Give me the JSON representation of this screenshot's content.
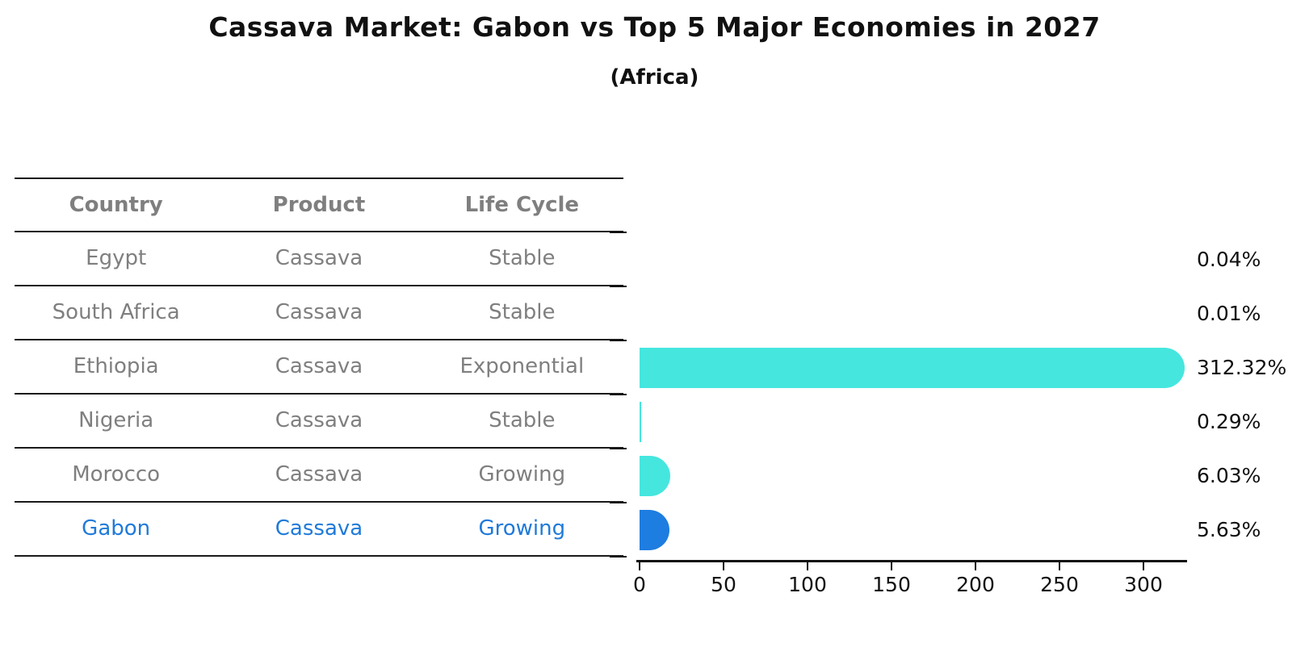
{
  "title": "Cassava Market: Gabon vs Top 5 Major Economies in 2027",
  "subtitle": "(Africa)",
  "table": {
    "columns": [
      "Country",
      "Product",
      "Life Cycle"
    ],
    "rows": [
      {
        "country": "Egypt",
        "product": "Cassava",
        "life_cycle": "Stable",
        "highlight": false
      },
      {
        "country": "South Africa",
        "product": "Cassava",
        "life_cycle": "Stable",
        "highlight": false
      },
      {
        "country": "Ethiopia",
        "product": "Cassava",
        "life_cycle": "Exponential",
        "highlight": false
      },
      {
        "country": "Nigeria",
        "product": "Cassava",
        "life_cycle": "Stable",
        "highlight": false
      },
      {
        "country": "Morocco",
        "product": "Cassava",
        "life_cycle": "Growing",
        "highlight": false
      },
      {
        "country": "Gabon",
        "product": "Cassava",
        "life_cycle": "Growing",
        "highlight": true
      }
    ]
  },
  "chart_data": {
    "type": "bar",
    "orientation": "horizontal",
    "title": "Cassava Market: Gabon vs Top 5 Major Economies in 2027 (Africa)",
    "categories": [
      "Egypt",
      "South Africa",
      "Ethiopia",
      "Nigeria",
      "Morocco",
      "Gabon"
    ],
    "values": [
      0.04,
      0.01,
      312.32,
      0.29,
      6.03,
      5.63
    ],
    "value_labels": [
      "0.04%",
      "0.01%",
      "312.32%",
      "0.29%",
      "6.03%",
      "5.63%"
    ],
    "bar_colors": [
      "#45E6DE",
      "#45E6DE",
      "#45E6DE",
      "#45E6DE",
      "#45E6DE",
      "#1E7DE0"
    ],
    "highlight_index": 5,
    "highlight_color": "#1E7DE0",
    "default_bar_color": "#45E6DE",
    "highlight_text_color": "#1f7ad9",
    "table_text_color": "#7f7f7f",
    "xticks": [
      0,
      50,
      100,
      150,
      200,
      250,
      300
    ],
    "xlim": [
      0,
      326
    ],
    "xlabel": "",
    "ylabel": "",
    "grid": false,
    "legend": "none"
  }
}
